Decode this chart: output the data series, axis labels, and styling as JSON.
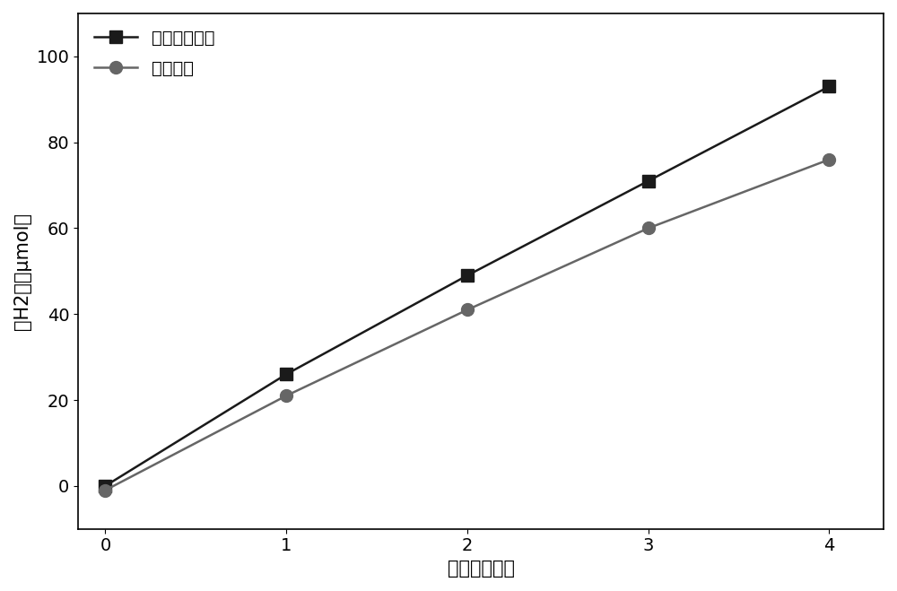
{
  "series1_x": [
    0,
    1,
    2,
    3,
    4
  ],
  "series1_y": [
    0,
    26,
    49,
    71,
    93
  ],
  "series2_x": [
    0,
    1,
    2,
    3,
    4
  ],
  "series2_y": [
    -1,
    21,
    41,
    60,
    76
  ],
  "series1_label": "空心球状粉体",
  "series2_label": "常规粉体",
  "series1_color": "#1a1a1a",
  "series2_color": "#666666",
  "series1_marker": "s",
  "series2_marker": "o",
  "series1_markersize": 10,
  "series2_markersize": 10,
  "series1_linewidth": 1.8,
  "series2_linewidth": 1.8,
  "xlabel": "时间（小时）",
  "ylabel": "产H2量（μmol）",
  "xlim": [
    -0.15,
    4.3
  ],
  "ylim": [
    -10,
    110
  ],
  "xticks": [
    0,
    1,
    2,
    3,
    4
  ],
  "yticks": [
    0,
    20,
    40,
    60,
    80,
    100
  ],
  "xlabel_fontsize": 15,
  "ylabel_fontsize": 15,
  "tick_fontsize": 14,
  "legend_fontsize": 14,
  "background_color": "#ffffff",
  "figure_width": 10.0,
  "figure_height": 6.59
}
